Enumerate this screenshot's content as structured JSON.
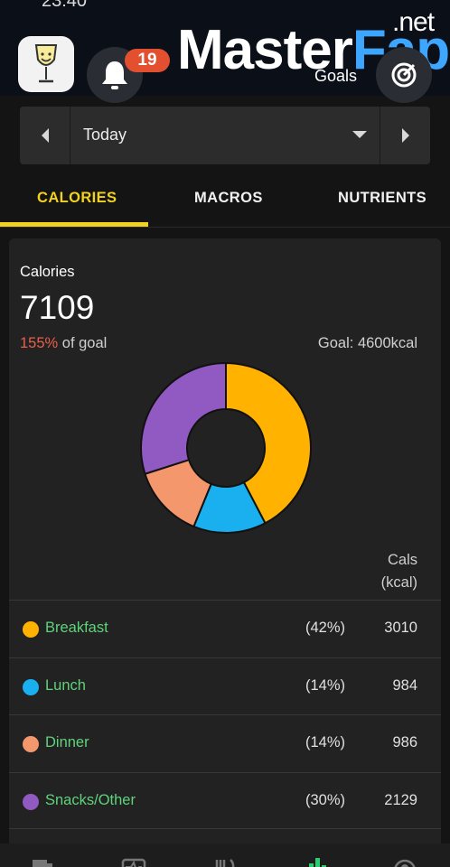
{
  "status_bar": {
    "time": "23:40"
  },
  "header": {
    "notification_count": "19",
    "goals_label": "Goals",
    "watermark": {
      "text_a": "Master",
      "text_b": "Fap",
      "text_c": ".net"
    }
  },
  "date_selector": {
    "label": "Today"
  },
  "tabs": [
    {
      "label": "CALORIES",
      "active": true
    },
    {
      "label": "MACROS",
      "active": false
    },
    {
      "label": "NUTRIENTS",
      "active": false
    }
  ],
  "summary": {
    "title": "Calories",
    "total": "7109",
    "percent_of_goal": "155%",
    "of_goal_text": " of goal",
    "goal_text": "Goal: 4600kcal"
  },
  "table_header": {
    "line1": "Cals",
    "line2": "(kcal)"
  },
  "meals": [
    {
      "name": "Breakfast",
      "share": "(42%)",
      "cals": "3010",
      "color": "#FFB300"
    },
    {
      "name": "Lunch",
      "share": "(14%)",
      "cals": "984",
      "color": "#1AAFEF"
    },
    {
      "name": "Dinner",
      "share": "(14%)",
      "cals": "986",
      "color": "#F4976C"
    },
    {
      "name": "Snacks/Other",
      "share": "(30%)",
      "cals": "2129",
      "color": "#9159C2"
    }
  ],
  "chart_data": {
    "type": "pie",
    "categories": [
      "Breakfast",
      "Lunch",
      "Dinner",
      "Snacks/Other"
    ],
    "values": [
      3010,
      984,
      986,
      2129
    ],
    "colors": [
      "#FFB300",
      "#1AAFEF",
      "#F4976C",
      "#9159C2"
    ],
    "donut": true
  },
  "bottom_nav": {
    "items": [
      {
        "icon": "dashboard-icon"
      },
      {
        "icon": "diary-icon"
      },
      {
        "icon": "food-icon"
      },
      {
        "icon": "charts-icon",
        "active": true
      },
      {
        "icon": "profile-icon"
      }
    ],
    "active_color": "#2ecc71"
  }
}
